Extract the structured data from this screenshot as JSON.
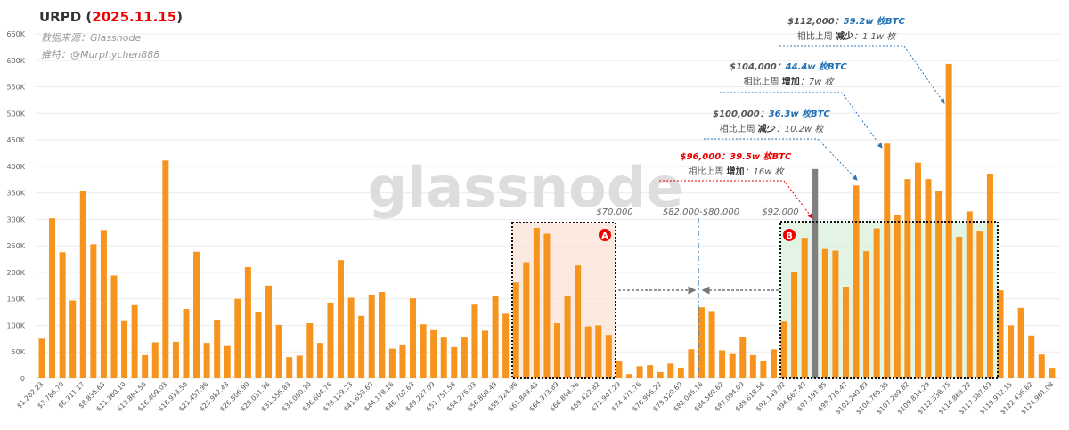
{
  "chart_data": {
    "type": "bar",
    "title_parts": [
      "URPD (",
      "2025.11.15",
      ")"
    ],
    "subtitles": [
      "数据来源：Glassnode",
      "推特：@Murphychen888"
    ],
    "watermark": "glassnode",
    "categories": [
      "$1,262.23",
      null,
      "$3,786.70",
      null,
      "$6,311.17",
      null,
      "$8,835.63",
      null,
      "$11,360.10",
      null,
      "$13,884.56",
      null,
      "$16,409.03",
      null,
      "$18,933.50",
      null,
      "$21,457.96",
      null,
      "$23,982.43",
      null,
      "$26,506.90",
      null,
      "$29,031.36",
      null,
      "$31,555.83",
      null,
      "$34,080.30",
      null,
      "$36,604.76",
      null,
      "$39,129.23",
      null,
      "$41,653.69",
      null,
      "$44,178.16",
      null,
      "$46,702.63",
      null,
      "$49,227.09",
      null,
      "$51,751.56",
      null,
      "$54,276.03",
      null,
      "$56,800.49",
      null,
      "$59,324.96",
      null,
      "$61,849.43",
      null,
      "$64,373.89",
      null,
      "$66,898.36",
      null,
      "$69,422.82",
      null,
      "$71,947.29",
      null,
      "$74,471.76",
      null,
      "$76,996.22",
      null,
      "$79,520.69",
      null,
      "$82,045.16",
      null,
      "$84,569.62",
      null,
      "$87,094.09",
      null,
      "$89,618.56",
      null,
      "$92,143.02",
      null,
      "$94,667.49",
      null,
      "$97,191.95",
      null,
      "$99,716.42",
      null,
      "$102,240.89",
      null,
      "$104,765.35",
      null,
      "$107,289.82",
      null,
      "$109,814.29",
      null,
      "$112,338.75",
      null,
      "$114,863.22",
      null,
      "$117,387.69",
      null,
      "$119,912.15",
      null,
      "$122,436.62",
      null,
      "$124,961.08"
    ],
    "values": [
      75000,
      302000,
      238000,
      147000,
      353000,
      253000,
      280000,
      194000,
      108000,
      138000,
      44000,
      68000,
      411000,
      69000,
      131000,
      239000,
      67000,
      110000,
      61000,
      150000,
      210000,
      125000,
      175000,
      101000,
      40000,
      43000,
      104000,
      67000,
      143000,
      223000,
      152000,
      118000,
      158000,
      163000,
      56000,
      64000,
      151000,
      102000,
      91000,
      77000,
      59000,
      77000,
      139000,
      90000,
      155000,
      122000,
      181000,
      219000,
      284000,
      273000,
      104000,
      155000,
      213000,
      98000,
      100000,
      82000,
      33000,
      8000,
      23000,
      25000,
      12000,
      28000,
      20000,
      55000,
      134000,
      127000,
      53000,
      46000,
      79000,
      44000,
      33000,
      55000,
      107000,
      200000,
      265000,
      395000,
      244000,
      241000,
      173000,
      364000,
      240000,
      283000,
      443000,
      309000,
      376000,
      407000,
      376000,
      353000,
      593000,
      267000,
      315000,
      277000,
      385000,
      166000,
      100000,
      133000,
      81000,
      45000,
      20000
    ],
    "color": "#f7941d",
    "highlight": {
      "index": 75,
      "color": "#7f7f7f"
    },
    "ylim": [
      0,
      650000
    ],
    "yticks": [
      0,
      {
        "value": 50000,
        "label": "50K"
      },
      {
        "value": 100000,
        "label": "100K"
      },
      {
        "value": 150000,
        "label": "150K"
      },
      {
        "value": 200000,
        "label": "200K"
      },
      {
        "value": 250000,
        "label": "250K"
      },
      {
        "value": 300000,
        "label": "300K"
      },
      {
        "value": 350000,
        "label": "350K"
      },
      {
        "value": 400000,
        "label": "400K"
      },
      {
        "value": 450000,
        "label": "450K"
      },
      {
        "value": 500000,
        "label": "500K"
      },
      {
        "value": 550000,
        "label": "550K"
      },
      {
        "value": 600000,
        "label": "600K"
      },
      {
        "value": 650000,
        "label": "650K"
      }
    ],
    "grid": true,
    "zone_labels": [
      "$70,000",
      "$82,000-$80,000",
      "$92,000"
    ],
    "boxes": [
      "A",
      "B"
    ],
    "callouts": [
      {
        "price": "$112,000：",
        "amount": "59.2w 枚BTC",
        "prefix": "相比上周 ",
        "direction": "减少",
        "change": "：1.1w 枚"
      },
      {
        "price": "$104,000：",
        "amount": "44.4w 枚BTC",
        "prefix": "相比上周 ",
        "direction": "增加",
        "change": "：7w 枚"
      },
      {
        "price": "$100,000：",
        "amount": "36.3w 枚BTC",
        "prefix": "相比上周 ",
        "direction": "减少",
        "change": "：10.2w 枚"
      },
      {
        "price": "$96,000：",
        "amount": "39.5w 枚BTC",
        "prefix": "相比上周 ",
        "direction": "增加",
        "change": "：16w 枚"
      }
    ]
  }
}
